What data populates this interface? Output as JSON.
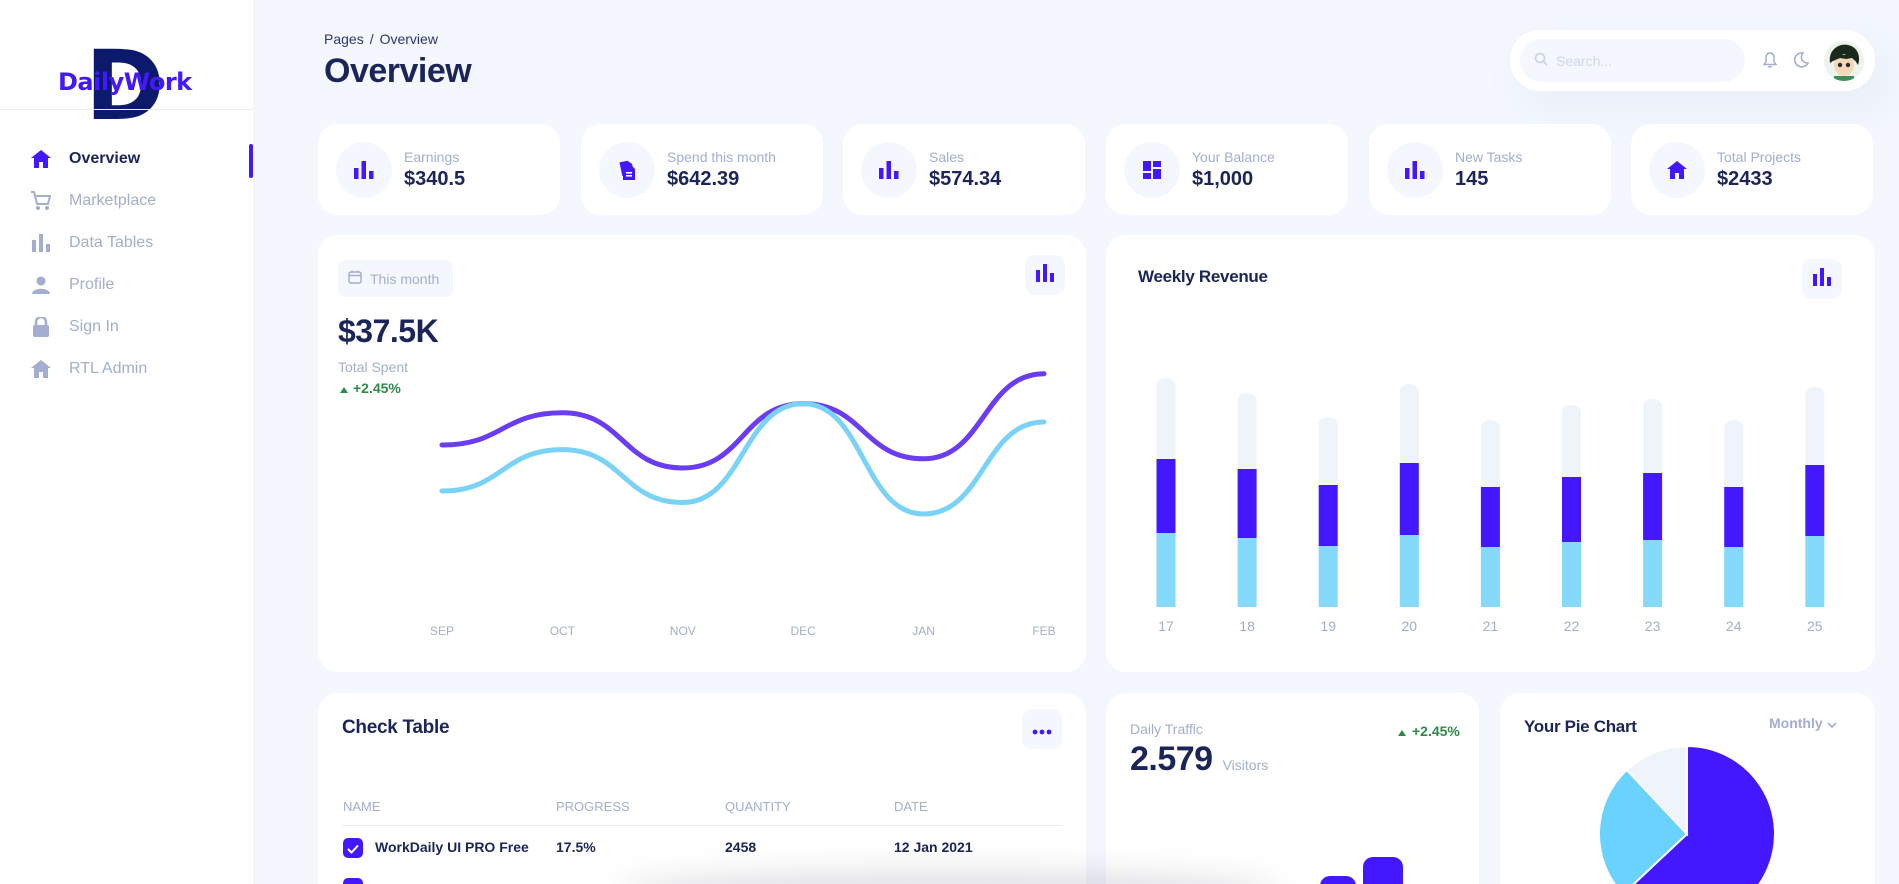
{
  "sidebar": {
    "logo_letter": "D",
    "logo_text": "DailyWork",
    "items": [
      {
        "label": "Overview",
        "icon": "home-icon",
        "active": true
      },
      {
        "label": "Marketplace",
        "icon": "cart-icon",
        "active": false
      },
      {
        "label": "Data Tables",
        "icon": "bar-chart-icon",
        "active": false
      },
      {
        "label": "Profile",
        "icon": "person-icon",
        "active": false
      },
      {
        "label": "Sign In",
        "icon": "lock-icon",
        "active": false
      },
      {
        "label": "RTL Admin",
        "icon": "home-icon",
        "active": false
      }
    ]
  },
  "header": {
    "breadcrumb": {
      "parent": "Pages",
      "separator": "/",
      "current": "Overview"
    },
    "title": "Overview",
    "search_placeholder": "Search..."
  },
  "stats": [
    {
      "label": "Earnings",
      "value": "$340.5",
      "icon": "bar-chart-icon"
    },
    {
      "label": "Spend this month",
      "value": "$642.39",
      "icon": "documents-icon"
    },
    {
      "label": "Sales",
      "value": "$574.34",
      "icon": "bar-chart-icon"
    },
    {
      "label": "Your Balance",
      "value": "$1,000",
      "icon": "dashboard-icon"
    },
    {
      "label": "New Tasks",
      "value": "145",
      "icon": "bar-chart-icon"
    },
    {
      "label": "Total Projects",
      "value": "$2433",
      "icon": "home-icon"
    }
  ],
  "total_spent": {
    "period_button": "This month",
    "value": "$37.5K",
    "label": "Total Spent",
    "delta": "+2.45%",
    "chart_data": {
      "type": "line",
      "x": [
        "SEP",
        "OCT",
        "NOV",
        "DEC",
        "JAN",
        "FEB"
      ],
      "series": [
        {
          "values": [
            50,
            64,
            40,
            68,
            44,
            81
          ],
          "color": "#6a3cf2"
        },
        {
          "values": [
            30,
            48,
            25,
            68,
            20,
            60
          ],
          "color": "#7ad3f7"
        }
      ]
    }
  },
  "weekly_revenue": {
    "title": "Weekly Revenue",
    "chart_data": {
      "type": "bar",
      "stacked": true,
      "categories": [
        "17",
        "18",
        "19",
        "20",
        "21",
        "22",
        "23",
        "24",
        "25"
      ],
      "series": [
        {
          "values": [
            74,
            69,
            61,
            72,
            60,
            65,
            67,
            60,
            71
          ],
          "color": "#85d9fb"
        },
        {
          "values": [
            74,
            69,
            61,
            72,
            60,
            65,
            67,
            60,
            71
          ],
          "color": "#4318ff"
        },
        {
          "values": [
            74,
            69,
            61,
            72,
            60,
            65,
            67,
            60,
            71
          ],
          "color": "#eff4fb"
        }
      ]
    }
  },
  "check_table": {
    "title": "Check Table",
    "columns": [
      "NAME",
      "PROGRESS",
      "QUANTITY",
      "DATE"
    ],
    "rows": [
      {
        "name": "WorkDaily UI PRO Free",
        "progress": "17.5%",
        "quantity": "2458",
        "date": "12 Jan 2021",
        "checked": true
      }
    ]
  },
  "daily_traffic": {
    "label": "Daily Traffic",
    "value": "2.579",
    "unit": "Visitors",
    "delta": "+2.45%"
  },
  "pie_chart": {
    "title": "Your Pie Chart",
    "dropdown": "Monthly",
    "chart_data": {
      "type": "pie",
      "values": [
        63,
        25,
        12
      ],
      "colors": [
        "#4318ff",
        "#6ad2ff",
        "#eff4fb"
      ]
    }
  },
  "colors": {
    "brand": "#4318ff",
    "text": "#1b2559",
    "muted": "#a3aed0",
    "green": "#05cd99"
  }
}
